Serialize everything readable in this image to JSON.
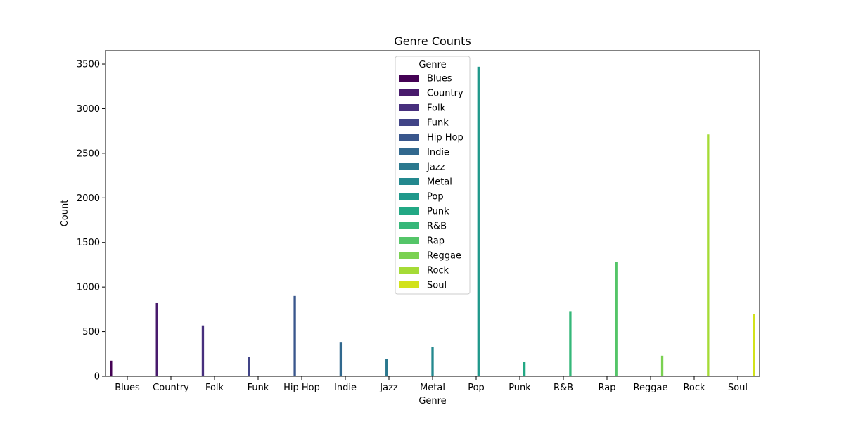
{
  "chart_data": {
    "type": "bar",
    "title": "Genre Counts",
    "xlabel": "Genre",
    "ylabel": "Count",
    "ylim": [
      0,
      3650
    ],
    "yticks": [
      0,
      500,
      1000,
      1500,
      2000,
      2500,
      3000,
      3500
    ],
    "grid": false,
    "legend": {
      "title": "Genre",
      "placement": "top-center"
    },
    "categories": [
      "Blues",
      "Country",
      "Folk",
      "Funk",
      "Hip Hop",
      "Indie",
      "Jazz",
      "Metal",
      "Pop",
      "Punk",
      "R&B",
      "Rap",
      "Reggae",
      "Rock",
      "Soul"
    ],
    "series": [
      {
        "name": "Blues",
        "color": "#440154",
        "values": [
          175,
          0,
          0,
          0,
          0,
          0,
          0,
          0,
          0,
          0,
          0,
          0,
          0,
          0,
          0
        ]
      },
      {
        "name": "Country",
        "color": "#481a6c",
        "values": [
          0,
          820,
          0,
          0,
          0,
          0,
          0,
          0,
          0,
          0,
          0,
          0,
          0,
          0,
          0
        ]
      },
      {
        "name": "Folk",
        "color": "#472f7d",
        "values": [
          0,
          0,
          570,
          0,
          0,
          0,
          0,
          0,
          0,
          0,
          0,
          0,
          0,
          0,
          0
        ]
      },
      {
        "name": "Funk",
        "color": "#414487",
        "values": [
          0,
          0,
          0,
          215,
          0,
          0,
          0,
          0,
          0,
          0,
          0,
          0,
          0,
          0,
          0
        ]
      },
      {
        "name": "Hip Hop",
        "color": "#39568c",
        "values": [
          0,
          0,
          0,
          0,
          900,
          0,
          0,
          0,
          0,
          0,
          0,
          0,
          0,
          0,
          0
        ]
      },
      {
        "name": "Indie",
        "color": "#31688e",
        "values": [
          0,
          0,
          0,
          0,
          0,
          385,
          0,
          0,
          0,
          0,
          0,
          0,
          0,
          0,
          0
        ]
      },
      {
        "name": "Jazz",
        "color": "#2a788e",
        "values": [
          0,
          0,
          0,
          0,
          0,
          0,
          195,
          0,
          0,
          0,
          0,
          0,
          0,
          0,
          0
        ]
      },
      {
        "name": "Metal",
        "color": "#23888e",
        "values": [
          0,
          0,
          0,
          0,
          0,
          0,
          0,
          330,
          0,
          0,
          0,
          0,
          0,
          0,
          0
        ]
      },
      {
        "name": "Pop",
        "color": "#1f988b",
        "values": [
          0,
          0,
          0,
          0,
          0,
          0,
          0,
          0,
          3470,
          0,
          0,
          0,
          0,
          0,
          0
        ]
      },
      {
        "name": "Punk",
        "color": "#22a884",
        "values": [
          0,
          0,
          0,
          0,
          0,
          0,
          0,
          0,
          0,
          160,
          0,
          0,
          0,
          0,
          0
        ]
      },
      {
        "name": "R&B",
        "color": "#35b779",
        "values": [
          0,
          0,
          0,
          0,
          0,
          0,
          0,
          0,
          0,
          0,
          730,
          0,
          0,
          0,
          0
        ]
      },
      {
        "name": "Rap",
        "color": "#54c568",
        "values": [
          0,
          0,
          0,
          0,
          0,
          0,
          0,
          0,
          0,
          0,
          0,
          1285,
          0,
          0,
          0
        ]
      },
      {
        "name": "Reggae",
        "color": "#7ad151",
        "values": [
          0,
          0,
          0,
          0,
          0,
          0,
          0,
          0,
          0,
          0,
          0,
          0,
          230,
          0,
          0
        ]
      },
      {
        "name": "Rock",
        "color": "#a5db36",
        "values": [
          0,
          0,
          0,
          0,
          0,
          0,
          0,
          0,
          0,
          0,
          0,
          0,
          0,
          2710,
          0
        ]
      },
      {
        "name": "Soul",
        "color": "#d2e21b",
        "values": [
          0,
          0,
          0,
          0,
          0,
          0,
          0,
          0,
          0,
          0,
          0,
          0,
          0,
          0,
          700
        ]
      }
    ]
  }
}
